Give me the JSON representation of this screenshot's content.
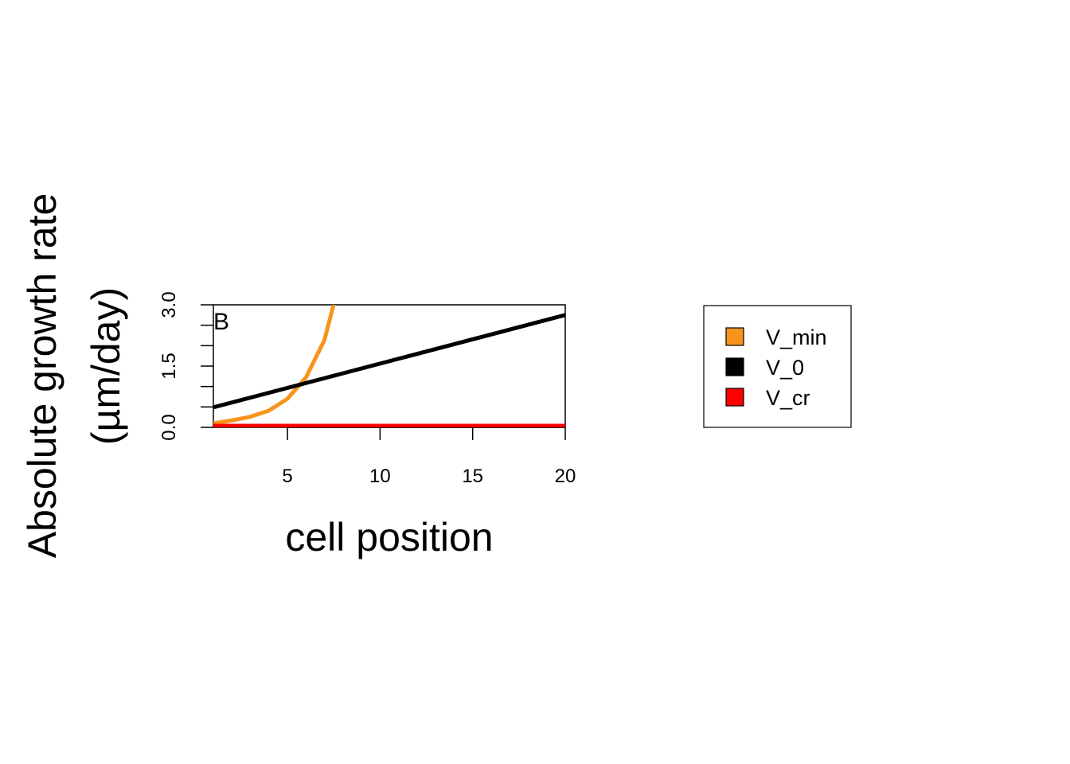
{
  "chart_data": {
    "type": "line",
    "panel_label": "B",
    "xlabel": "cell position",
    "ylabel_lines": [
      "Absolute growth rate",
      "(µm/day)"
    ],
    "xlim": [
      1,
      20
    ],
    "ylim": [
      0,
      3
    ],
    "x_ticks": [
      5,
      10,
      15,
      20
    ],
    "x_tick_labels": [
      "5",
      "10",
      "15",
      "20"
    ],
    "y_ticks": [
      0,
      0.5,
      1,
      1.5,
      2,
      2.5,
      3
    ],
    "y_tick_labels": [
      "0.0",
      "",
      "",
      "1.5",
      "",
      "",
      "3.0"
    ],
    "grid": false,
    "legend_position": "right",
    "series": [
      {
        "name": "V_min",
        "color": "#F7941D",
        "x": [
          1,
          2,
          3,
          4,
          5,
          6,
          7,
          8
        ],
        "y": [
          0.1,
          0.17,
          0.26,
          0.41,
          0.7,
          1.22,
          2.14,
          3.9
        ]
      },
      {
        "name": "V_0",
        "color": "#000000",
        "x": [
          1,
          20
        ],
        "y": [
          0.49,
          2.75
        ]
      },
      {
        "name": "V_cr",
        "color": "#FF0000",
        "x": [
          1,
          20
        ],
        "y": [
          0.04,
          0.04
        ]
      }
    ]
  }
}
